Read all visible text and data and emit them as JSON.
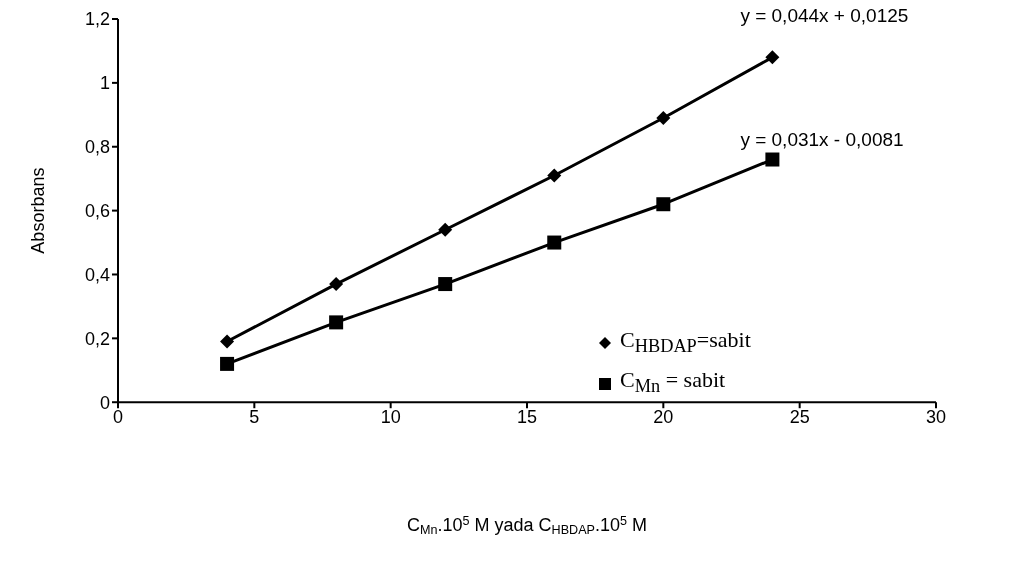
{
  "chart_data": {
    "type": "line",
    "xlabel": "C$_{Mn}$.10$^{5}$ M yada C$_{HBDAP}$.10$^{5}$ M",
    "ylabel": "Absorbans",
    "x": [
      4,
      8,
      12,
      16,
      20,
      24
    ],
    "series": [
      {
        "name": "C$_{HBDAP}$=sabit",
        "color": "#000000",
        "marker": "diamond",
        "values": [
          0.19,
          0.37,
          0.54,
          0.71,
          0.89,
          1.08
        ]
      },
      {
        "name": "C$_{Mn}$ = sabit",
        "color": "#000000",
        "marker": "square",
        "values": [
          0.12,
          0.25,
          0.37,
          0.5,
          0.62,
          0.76
        ]
      }
    ],
    "annotations": [
      "y = 0,044x + 0,0125",
      "y = 0,031x - 0,0081"
    ],
    "xlim": [
      0,
      30
    ],
    "xticks": [
      0,
      5,
      10,
      15,
      20,
      25,
      30
    ],
    "ylim": [
      0,
      1.2
    ],
    "yticks": [
      {
        "value": 0,
        "label": "0"
      },
      {
        "value": 0.2,
        "label": "0,2"
      },
      {
        "value": 0.4,
        "label": "0,4"
      },
      {
        "value": 0.6,
        "label": "0,6"
      },
      {
        "value": 0.8,
        "label": "0,8"
      },
      {
        "value": 1,
        "label": "1"
      },
      {
        "value": 1.2,
        "label": "1,2"
      }
    ],
    "grid": false,
    "legend": "right",
    "line_style": "solid"
  }
}
